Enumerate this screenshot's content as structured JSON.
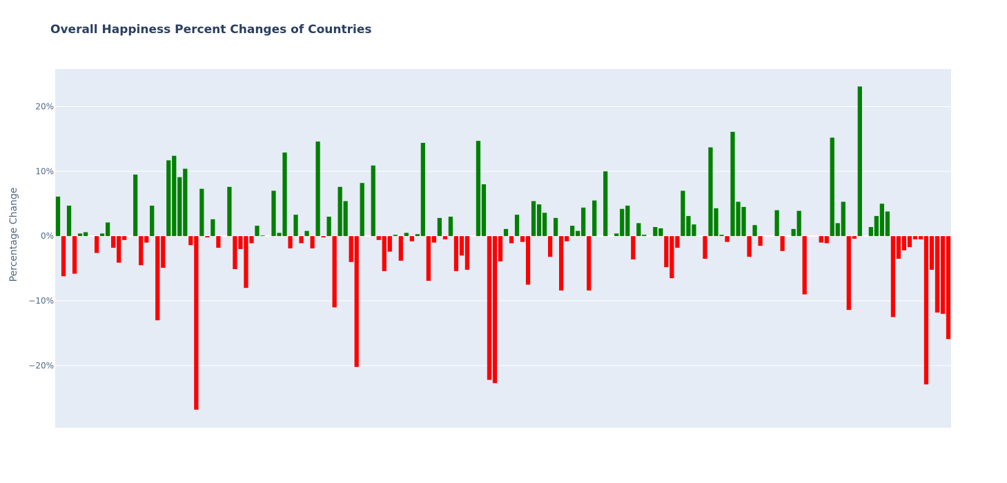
{
  "chart_data": {
    "type": "bar",
    "title": "Overall Happiness Percent Changes of Countries",
    "xlabel": "",
    "ylabel": "Percentage Change",
    "ylim": [
      -29.6,
      25.8
    ],
    "yticks": [
      20,
      10,
      0,
      -10,
      -20
    ],
    "ytick_labels": [
      "20%",
      "10%",
      "0%",
      "−10%",
      "−20%"
    ],
    "grid": true,
    "legend": "none",
    "colors": {
      "positive": "#008000",
      "negative": "#ff0000",
      "plot_bg": "#e5ecf6",
      "grid": "#ffffff"
    },
    "values": [
      6.1,
      -6.2,
      4.7,
      -5.8,
      0.4,
      0.6,
      0.0,
      -2.6,
      0.4,
      2.1,
      -1.8,
      -4.1,
      -0.6,
      0.0,
      9.5,
      -4.5,
      -1.0,
      4.7,
      -13.0,
      -4.9,
      11.7,
      12.4,
      9.1,
      10.4,
      -1.4,
      -26.8,
      7.3,
      -0.2,
      2.6,
      -1.8,
      0.0,
      7.6,
      -5.1,
      -2.0,
      -8.0,
      -1.1,
      1.6,
      0.1,
      0.0,
      7.0,
      0.5,
      12.9,
      -1.9,
      3.3,
      -1.1,
      0.8,
      -1.9,
      14.6,
      -0.2,
      3.0,
      -11.0,
      7.6,
      5.4,
      -4.0,
      -20.2,
      8.2,
      0.0,
      10.9,
      -0.6,
      -5.4,
      -2.4,
      0.2,
      -3.8,
      0.5,
      -0.8,
      0.3,
      14.4,
      -6.9,
      -1.0,
      2.8,
      -0.5,
      3.0,
      -5.4,
      -3.0,
      -5.2,
      0.0,
      14.7,
      8.0,
      -22.2,
      -22.7,
      -3.9,
      1.1,
      -1.1,
      3.3,
      -0.9,
      -7.5,
      5.4,
      4.9,
      3.6,
      -3.2,
      2.8,
      -8.4,
      -0.8,
      1.6,
      0.8,
      4.4,
      -8.4,
      5.5,
      0.0,
      10.0,
      0.0,
      0.4,
      4.2,
      4.7,
      -3.6,
      2.0,
      0.2,
      0.0,
      1.4,
      1.2,
      -4.8,
      -6.5,
      -1.8,
      7.0,
      3.1,
      1.8,
      0.0,
      -3.5,
      13.7,
      4.3,
      0.2,
      -0.9,
      16.1,
      5.3,
      4.5,
      -3.2,
      1.7,
      -1.5,
      0.0,
      0.0,
      4.0,
      -2.3,
      0.0,
      1.1,
      3.9,
      -9.0,
      0.0,
      0.0,
      -1.0,
      -1.1,
      15.2,
      2.0,
      5.3,
      -11.4,
      -0.4,
      23.1,
      0.0,
      1.4,
      3.1,
      5.0,
      3.8,
      -12.5,
      -3.5,
      -2.2,
      -1.7,
      -0.5,
      -0.5,
      -22.9,
      -5.2,
      -11.8,
      -12.0,
      -15.9
    ]
  }
}
